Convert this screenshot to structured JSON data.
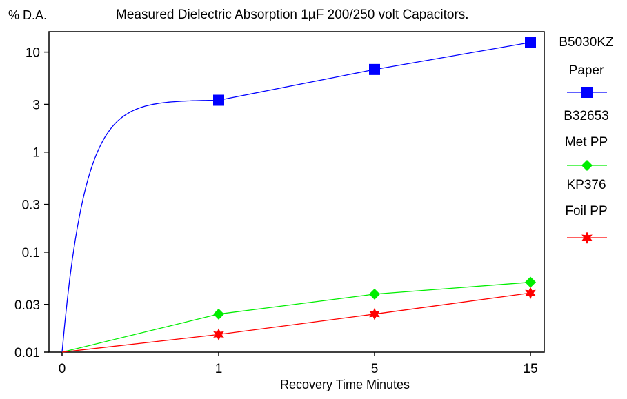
{
  "chart_data": {
    "type": "line",
    "title": "Measured Dielectric Absorption 1µF 200/250 volt Capacitors.",
    "ylabel": "% D.A.",
    "xlabel": "Recovery Time Minutes",
    "x_ticks": [
      "0",
      "1",
      "5",
      "15"
    ],
    "y_ticks": [
      "0.01",
      "0.03",
      "0.1",
      "0.3",
      "1",
      "3",
      "10"
    ],
    "y_scale": "log",
    "ylim": [
      0.01,
      16
    ],
    "grid": false,
    "legend_position": "right",
    "series": [
      {
        "name": "B5030KZ Paper",
        "legend_line1": "B5030KZ",
        "legend_line2": "Paper",
        "color": "#0000ff",
        "marker": "square",
        "x": [
          "0",
          "1",
          "5",
          "15"
        ],
        "values": [
          0.01,
          3.3,
          6.7,
          12.5
        ]
      },
      {
        "name": "B32653 Met PP",
        "legend_line1": "B32653",
        "legend_line2": "Met PP",
        "color": "#00ee00",
        "marker": "diamond",
        "x": [
          "0",
          "1",
          "5",
          "15"
        ],
        "values": [
          0.01,
          0.024,
          0.038,
          0.05
        ]
      },
      {
        "name": "KP376 Foil PP",
        "legend_line1": "KP376",
        "legend_line2": "Foil PP",
        "color": "#ff0000",
        "marker": "star",
        "x": [
          "0",
          "1",
          "5",
          "15"
        ],
        "values": [
          0.01,
          0.015,
          0.024,
          0.039
        ]
      }
    ]
  }
}
